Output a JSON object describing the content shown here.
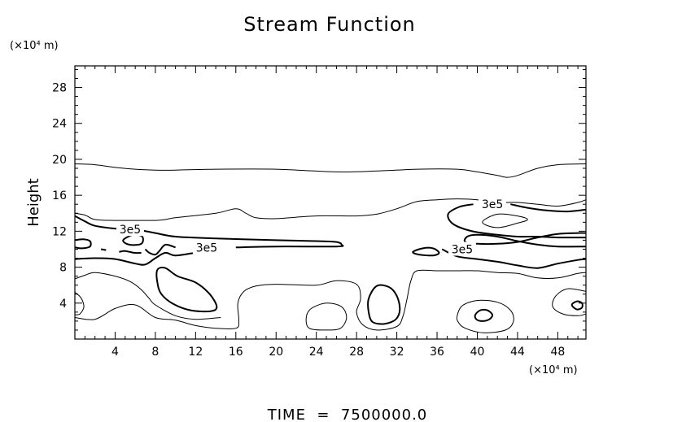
{
  "chart_data": {
    "type": "contour",
    "title": "Stream Function",
    "ylabel": "Height",
    "yunit": "(×10⁴ m)",
    "xunit": "(×10⁴ m)",
    "xlim": [
      0,
      50.8
    ],
    "ylim": [
      0,
      30.4
    ],
    "xticks": [
      4,
      8,
      12,
      16,
      20,
      24,
      28,
      32,
      36,
      40,
      44,
      48
    ],
    "yticks": [
      4,
      8,
      12,
      16,
      20,
      24,
      28
    ],
    "footer": "TIME  =  7500000.0",
    "contour_label_text": "3e5",
    "contour_labels": [
      {
        "x": 5.5,
        "y": 12.2
      },
      {
        "x": 13.1,
        "y": 10.2
      },
      {
        "x": 41.5,
        "y": 15.0
      },
      {
        "x": 38.5,
        "y": 10.0
      }
    ],
    "contours": [
      {
        "weight": "thin",
        "closed": false,
        "points": [
          [
            0,
            19.5
          ],
          [
            2,
            19.4
          ],
          [
            4,
            19.1
          ],
          [
            6,
            18.9
          ],
          [
            8,
            18.8
          ],
          [
            10,
            18.8
          ],
          [
            14,
            18.9
          ],
          [
            20,
            18.9
          ],
          [
            26,
            18.6
          ],
          [
            30,
            18.7
          ],
          [
            34,
            18.9
          ],
          [
            38,
            18.9
          ],
          [
            40,
            18.6
          ],
          [
            42,
            18.2
          ],
          [
            43,
            18.0
          ],
          [
            44,
            18.2
          ],
          [
            46,
            19.0
          ],
          [
            48,
            19.4
          ],
          [
            50.8,
            19.5
          ]
        ]
      },
      {
        "weight": "thin",
        "closed": false,
        "points": [
          [
            0,
            14.0
          ],
          [
            1,
            13.8
          ],
          [
            2,
            13.3
          ],
          [
            4,
            13.2
          ],
          [
            6,
            13.2
          ],
          [
            8,
            13.2
          ],
          [
            9,
            13.3
          ],
          [
            10,
            13.5
          ],
          [
            14,
            14.0
          ],
          [
            16,
            14.5
          ],
          [
            17,
            14.0
          ],
          [
            18,
            13.5
          ],
          [
            20,
            13.4
          ],
          [
            24,
            13.7
          ],
          [
            28,
            13.7
          ],
          [
            30,
            13.9
          ],
          [
            32,
            14.5
          ],
          [
            34,
            15.3
          ],
          [
            36,
            15.5
          ],
          [
            38,
            15.6
          ],
          [
            40,
            15.5
          ],
          [
            42,
            15.2
          ],
          [
            44,
            15.2
          ],
          [
            46,
            15.0
          ],
          [
            48,
            14.8
          ],
          [
            50,
            15.2
          ],
          [
            50.8,
            15.5
          ]
        ]
      },
      {
        "weight": "thick",
        "closed": false,
        "points": [
          [
            0,
            13.7
          ],
          [
            1,
            13.1
          ],
          [
            2,
            12.6
          ],
          [
            4,
            12.3
          ],
          [
            6,
            12.2
          ],
          [
            8,
            11.8
          ],
          [
            10,
            11.4
          ],
          [
            14,
            11.2
          ],
          [
            20,
            11.0
          ],
          [
            24,
            10.9
          ],
          [
            26,
            10.8
          ],
          [
            26.5,
            10.5
          ],
          [
            26,
            10.3
          ],
          [
            20,
            10.3
          ],
          [
            16,
            10.2
          ]
        ]
      },
      {
        "weight": "thick",
        "closed": false,
        "points": [
          [
            10,
            10.2
          ],
          [
            9,
            10.5
          ],
          [
            8.4,
            9.8
          ],
          [
            8,
            9.4
          ],
          [
            7.4,
            9.6
          ],
          [
            7,
            10.0
          ]
        ]
      },
      {
        "weight": "thick",
        "closed": false,
        "points": [
          [
            0,
            11.0
          ],
          [
            0.8,
            11.1
          ],
          [
            1.5,
            10.9
          ],
          [
            1.5,
            10.3
          ],
          [
            0.7,
            10.1
          ],
          [
            0,
            10.2
          ]
        ]
      },
      {
        "weight": "thick",
        "closed": true,
        "points": [
          [
            4.8,
            11.0
          ],
          [
            5.8,
            11.6
          ],
          [
            6.7,
            11.4
          ],
          [
            6.6,
            10.6
          ],
          [
            5.4,
            10.5
          ]
        ]
      },
      {
        "weight": "thick",
        "closed": false,
        "points": [
          [
            2.6,
            10.0
          ],
          [
            3.1,
            9.9
          ]
        ]
      },
      {
        "weight": "thick",
        "closed": false,
        "points": [
          [
            4.4,
            9.7
          ],
          [
            5.0,
            9.8
          ],
          [
            5.9,
            9.6
          ],
          [
            6.6,
            9.6
          ]
        ]
      },
      {
        "weight": "thick",
        "closed": false,
        "points": [
          [
            0,
            8.9
          ],
          [
            2,
            9.0
          ],
          [
            4,
            8.9
          ],
          [
            6,
            8.4
          ],
          [
            7,
            8.3
          ],
          [
            8,
            9.0
          ],
          [
            9,
            9.6
          ],
          [
            10,
            9.3
          ],
          [
            12,
            9.6
          ],
          [
            14,
            9.8
          ]
        ]
      },
      {
        "weight": "thick",
        "closed": false,
        "points": [
          [
            36.5,
            10.0
          ],
          [
            38,
            9.2
          ],
          [
            40,
            8.9
          ],
          [
            42,
            8.6
          ],
          [
            44,
            8.2
          ],
          [
            46,
            7.9
          ],
          [
            48,
            8.4
          ],
          [
            50,
            8.8
          ],
          [
            50.8,
            8.9
          ]
        ]
      },
      {
        "weight": "thick",
        "closed": false,
        "points": [
          [
            50.8,
            10.3
          ],
          [
            48,
            10.3
          ],
          [
            46,
            10.5
          ],
          [
            44,
            10.9
          ],
          [
            42,
            11.4
          ],
          [
            40,
            11.6
          ],
          [
            39,
            11.4
          ],
          [
            38.8,
            10.8
          ],
          [
            40,
            10.6
          ],
          [
            42,
            10.6
          ],
          [
            44,
            10.8
          ],
          [
            46,
            11.3
          ],
          [
            48,
            11.7
          ],
          [
            50,
            11.8
          ],
          [
            50.8,
            11.8
          ]
        ]
      },
      {
        "weight": "thick",
        "closed": false,
        "points": [
          [
            39.6,
            15.0
          ],
          [
            38.2,
            14.7
          ],
          [
            37.1,
            13.9
          ],
          [
            37.6,
            12.8
          ],
          [
            39.5,
            12.0
          ],
          [
            42,
            11.6
          ],
          [
            44,
            11.4
          ],
          [
            46,
            11.4
          ],
          [
            48,
            11.3
          ],
          [
            50,
            11.3
          ],
          [
            50.8,
            11.3
          ]
        ]
      },
      {
        "weight": "thick",
        "closed": false,
        "points": [
          [
            43.3,
            15.0
          ],
          [
            45,
            14.6
          ],
          [
            47,
            14.3
          ],
          [
            49,
            14.2
          ],
          [
            50.8,
            14.4
          ]
        ]
      },
      {
        "weight": "thick",
        "closed": true,
        "points": [
          [
            33.6,
            9.7
          ],
          [
            34.6,
            10.1
          ],
          [
            35.6,
            10.1
          ],
          [
            36.2,
            9.6
          ],
          [
            35.6,
            9.3
          ],
          [
            34.2,
            9.4
          ]
        ]
      },
      {
        "weight": "thin",
        "closed": true,
        "points": [
          [
            40.5,
            13.0
          ],
          [
            42,
            13.9
          ],
          [
            44,
            13.7
          ],
          [
            45,
            13.3
          ],
          [
            44,
            12.9
          ],
          [
            42,
            12.4
          ]
        ]
      },
      {
        "weight": "thin",
        "closed": false,
        "points": [
          [
            0,
            2.4
          ],
          [
            2,
            2.2
          ],
          [
            4,
            3.4
          ],
          [
            6,
            3.8
          ],
          [
            8,
            2.4
          ],
          [
            10,
            2.1
          ],
          [
            12,
            1.5
          ],
          [
            14,
            1.2
          ],
          [
            16,
            1.2
          ],
          [
            16.3,
            2.0
          ],
          [
            16.2,
            4.0
          ],
          [
            16.8,
            5.3
          ],
          [
            18,
            5.9
          ],
          [
            20,
            6.1
          ],
          [
            24,
            6.0
          ],
          [
            26,
            6.5
          ],
          [
            28,
            6.1
          ],
          [
            28.4,
            4.5
          ],
          [
            28,
            3.0
          ],
          [
            28.6,
            1.6
          ],
          [
            30,
            1.0
          ],
          [
            32,
            1.4
          ],
          [
            32.6,
            2.5
          ],
          [
            33,
            4.4
          ],
          [
            33.4,
            6.5
          ],
          [
            34,
            7.6
          ],
          [
            36,
            7.6
          ],
          [
            38,
            7.6
          ],
          [
            40,
            7.6
          ],
          [
            42,
            7.4
          ],
          [
            44,
            7.3
          ],
          [
            46,
            6.8
          ],
          [
            48,
            6.8
          ],
          [
            50,
            7.3
          ],
          [
            50.8,
            7.4
          ]
        ]
      },
      {
        "weight": "thin",
        "closed": false,
        "points": [
          [
            0,
            6.7
          ],
          [
            1,
            7.1
          ],
          [
            2,
            7.4
          ],
          [
            4,
            7.0
          ],
          [
            5.5,
            6.4
          ],
          [
            6.6,
            5.5
          ],
          [
            7.4,
            4.5
          ],
          [
            8,
            3.8
          ],
          [
            10,
            2.6
          ],
          [
            12,
            2.2
          ],
          [
            14.5,
            2.4
          ]
        ]
      },
      {
        "weight": "thick",
        "closed": true,
        "points": [
          [
            8.2,
            7.7
          ],
          [
            9,
            7.9
          ],
          [
            10.2,
            7.0
          ],
          [
            12,
            6.3
          ],
          [
            13.4,
            5.0
          ],
          [
            14.1,
            3.6
          ],
          [
            13.5,
            3.1
          ],
          [
            11.5,
            3.2
          ],
          [
            9.8,
            3.9
          ],
          [
            8.6,
            5.0
          ],
          [
            8.2,
            6.3
          ]
        ]
      },
      {
        "weight": "thin",
        "closed": true,
        "points": [
          [
            23.3,
            1.2
          ],
          [
            25,
            1.0
          ],
          [
            26.4,
            1.2
          ],
          [
            27,
            2.4
          ],
          [
            26.5,
            3.6
          ],
          [
            25,
            4.0
          ],
          [
            23.5,
            3.4
          ],
          [
            23.0,
            2.4
          ]
        ]
      },
      {
        "weight": "thick",
        "closed": true,
        "points": [
          [
            30,
            5.9
          ],
          [
            31.2,
            5.8
          ],
          [
            32,
            4.8
          ],
          [
            32.3,
            3.3
          ],
          [
            31.9,
            2.2
          ],
          [
            30.8,
            1.7
          ],
          [
            29.6,
            1.9
          ],
          [
            29.2,
            3.0
          ],
          [
            29.2,
            4.5
          ]
        ]
      },
      {
        "weight": "thin",
        "closed": true,
        "points": [
          [
            38,
            2.6
          ],
          [
            38.5,
            3.7
          ],
          [
            40,
            4.3
          ],
          [
            42,
            4.1
          ],
          [
            43.3,
            3.2
          ],
          [
            43.6,
            2.0
          ],
          [
            42.8,
            1.0
          ],
          [
            40.6,
            0.7
          ],
          [
            38.8,
            1.2
          ],
          [
            38.1,
            1.9
          ]
        ]
      },
      {
        "weight": "thick",
        "closed": true,
        "points": [
          [
            39.8,
            2.7
          ],
          [
            40.3,
            3.2
          ],
          [
            41,
            3.2
          ],
          [
            41.5,
            2.7
          ],
          [
            41.2,
            2.2
          ],
          [
            40.5,
            2.0
          ],
          [
            39.9,
            2.2
          ]
        ]
      },
      {
        "weight": "thin",
        "closed": false,
        "points": [
          [
            0,
            5.2
          ],
          [
            0.6,
            4.6
          ],
          [
            0.9,
            3.6
          ],
          [
            0.5,
            2.8
          ],
          [
            0,
            2.7
          ]
        ]
      },
      {
        "weight": "thin",
        "closed": false,
        "points": [
          [
            50.8,
            5.3
          ],
          [
            49,
            5.6
          ],
          [
            47.8,
            4.8
          ],
          [
            47.5,
            3.6
          ],
          [
            48.5,
            2.8
          ],
          [
            50,
            2.6
          ],
          [
            50.8,
            2.8
          ]
        ]
      },
      {
        "weight": "thick",
        "closed": true,
        "points": [
          [
            49.4,
            3.8
          ],
          [
            49.9,
            4.2
          ],
          [
            50.4,
            4.0
          ],
          [
            50.4,
            3.5
          ],
          [
            49.9,
            3.3
          ]
        ]
      }
    ]
  }
}
